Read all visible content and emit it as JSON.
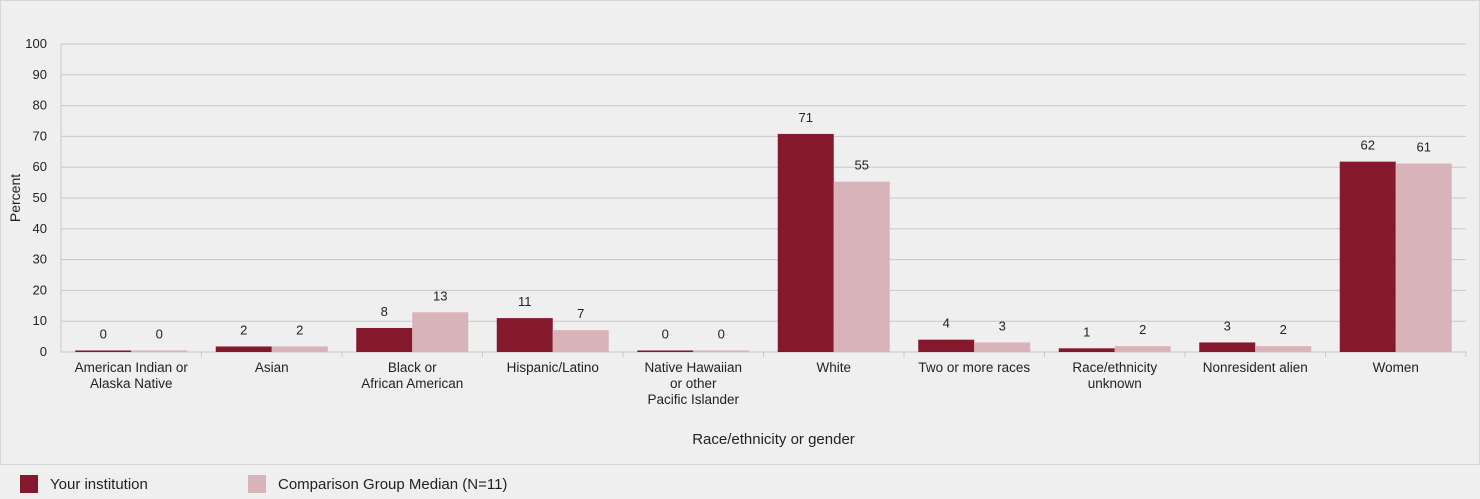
{
  "chart_data": {
    "type": "bar",
    "categories": [
      [
        "American Indian or",
        "Alaska Native"
      ],
      [
        "Asian"
      ],
      [
        "Black or",
        "African American"
      ],
      [
        "Hispanic/Latino"
      ],
      [
        "Native Hawaiian",
        "or other",
        "Pacific Islander"
      ],
      [
        "White"
      ],
      [
        "Two or more races"
      ],
      [
        "Race/ethnicity",
        "unknown"
      ],
      [
        "Nonresident alien"
      ],
      [
        "Women"
      ]
    ],
    "series": [
      {
        "name": "Your institution",
        "color": "#84192d",
        "values": [
          0.5,
          1.8,
          7.8,
          11,
          0.5,
          70.8,
          4,
          1.2,
          3.1,
          61.8
        ],
        "labels": [
          "0",
          "2",
          "8",
          "11",
          "0",
          "71",
          "4",
          "1",
          "3",
          "62"
        ]
      },
      {
        "name": "Comparison Group Median (N=11)",
        "color": "#d8b4ba",
        "values": [
          0.5,
          1.8,
          12.9,
          7.1,
          0.5,
          55.3,
          3.1,
          1.9,
          1.9,
          61.2
        ],
        "labels": [
          "0",
          "2",
          "13",
          "7",
          "0",
          "55",
          "3",
          "2",
          "2",
          ""
        ]
      }
    ],
    "extra_labels": [
      {
        "category_index": 9,
        "series_index": 1,
        "text": "61"
      }
    ],
    "ylim": [
      0,
      100
    ],
    "yticks": [
      0,
      10,
      20,
      30,
      40,
      50,
      60,
      70,
      80,
      90,
      100
    ],
    "ylabel": "Percent",
    "xlabel": "Race/ethnicity or gender",
    "grid": true,
    "legend_position": "bottom-left"
  }
}
